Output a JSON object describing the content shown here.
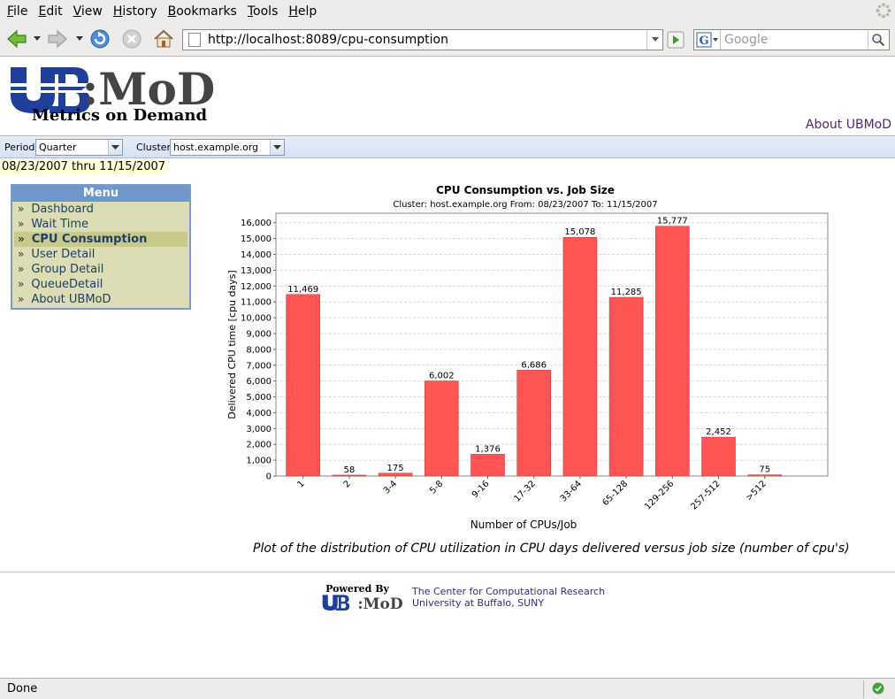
{
  "browser": {
    "menu": [
      {
        "label": "File",
        "key": "F",
        "rest": "ile"
      },
      {
        "label": "Edit",
        "key": "E",
        "rest": "dit"
      },
      {
        "label": "View",
        "key": "V",
        "rest": "iew"
      },
      {
        "label": "History",
        "key": "H",
        "rest": "istory"
      },
      {
        "label": "Bookmarks",
        "key": "B",
        "rest": "ookmarks"
      },
      {
        "label": "Tools",
        "key": "T",
        "rest": "ools"
      },
      {
        "label": "Help",
        "key": "H",
        "rest": "elp"
      }
    ],
    "url": "http://localhost:8089/cpu-consumption",
    "search_placeholder": "Google",
    "status": "Done",
    "icons": {
      "back": "back-arrow-icon",
      "forward": "forward-arrow-icon",
      "reload": "reload-icon",
      "stop": "stop-icon",
      "home": "home-icon",
      "go": "go-arrow-icon",
      "search": "magnifier-icon"
    }
  },
  "page": {
    "logo_text": "UB:MoD",
    "logo_subtitle": "Metrics on Demand",
    "about_link": "About UBMoD",
    "filters": {
      "period_label": "Period:",
      "period_value": "Quarter",
      "cluster_label": "Cluster:",
      "cluster_value": "host.example.org"
    },
    "date_range": "08/23/2007 thru 11/15/2007",
    "menu": {
      "title": "Menu",
      "items": [
        {
          "label": "Dashboard",
          "active": false
        },
        {
          "label": "Wait Time",
          "active": false
        },
        {
          "label": "CPU Consumption",
          "active": true
        },
        {
          "label": "User Detail",
          "active": false
        },
        {
          "label": "Group Detail",
          "active": false
        },
        {
          "label": "QueueDetail",
          "active": false
        },
        {
          "label": "About UBMoD",
          "active": false
        }
      ]
    },
    "caption": "Plot of the distribution of CPU utilization in CPU days delivered versus job size (number of cpu's)",
    "footer": {
      "powered_by": "Powered By",
      "powered_logo": "UB:MoD",
      "center_line1": "The Center for Computational Research",
      "center_line2": "University at Buffalo, SUNY"
    }
  },
  "chart_data": {
    "type": "bar",
    "title": "CPU Consumption vs. Job Size",
    "subtitle": "Cluster: host.example.org From: 08/23/2007 To: 11/15/2007",
    "xlabel": "Number of CPUs/Job",
    "ylabel": "Delivered CPU time [cpu days]",
    "categories": [
      "1",
      "2",
      "3-4",
      "5-8",
      "9-16",
      "17-32",
      "33-64",
      "65-128",
      "129-256",
      "257-512",
      ">512"
    ],
    "values": [
      11469,
      58,
      175,
      6002,
      1376,
      6686,
      15078,
      11285,
      15777,
      2452,
      75
    ],
    "value_labels": [
      "11,469",
      "58",
      "175",
      "6,002",
      "1,376",
      "6,686",
      "15,078",
      "11,285",
      "15,777",
      "2,452",
      "75"
    ],
    "ylim": [
      0,
      16600
    ],
    "yticks": [
      0,
      1000,
      2000,
      3000,
      4000,
      5000,
      6000,
      7000,
      8000,
      9000,
      10000,
      11000,
      12000,
      13000,
      14000,
      15000,
      16000
    ],
    "ytick_labels": [
      "0",
      "1,000",
      "2,000",
      "3,000",
      "4,000",
      "5,000",
      "6,000",
      "7,000",
      "8,000",
      "9,000",
      "10,000",
      "11,000",
      "12,000",
      "13,000",
      "14,000",
      "15,000",
      "16,000"
    ],
    "grid": true,
    "bar_color": "#ff5555"
  }
}
